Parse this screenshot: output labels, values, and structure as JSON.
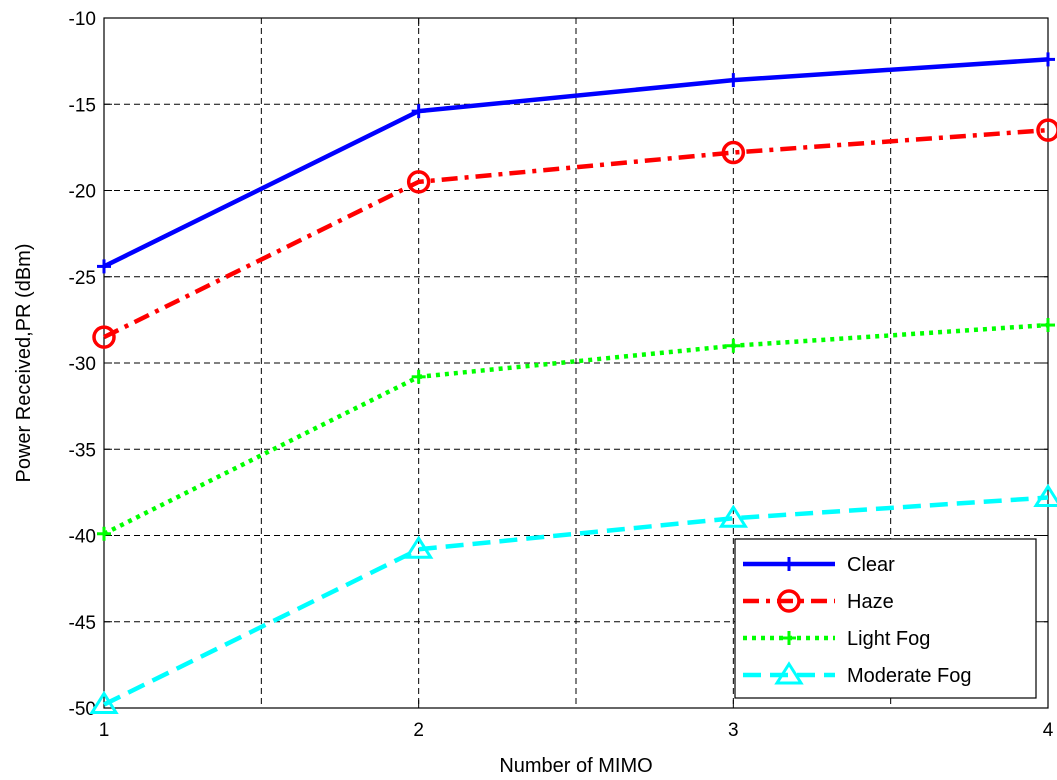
{
  "chart_data": {
    "type": "line",
    "title": "",
    "xlabel": "Number of MIMO",
    "ylabel": "Power Received,PR (dBm)",
    "xlim": [
      1,
      4
    ],
    "ylim": [
      -50,
      -10
    ],
    "x_ticks": [
      1,
      2,
      3,
      4
    ],
    "y_ticks": [
      -50,
      -45,
      -40,
      -35,
      -30,
      -25,
      -20,
      -15,
      -10
    ],
    "x_grid": [
      1,
      1.5,
      2,
      2.5,
      3,
      3.5,
      4
    ],
    "grid": true,
    "legend_position": "bottom-right",
    "x": [
      1,
      2,
      3,
      4
    ],
    "series": [
      {
        "name": "Clear",
        "values": [
          -24.4,
          -15.4,
          -13.6,
          -12.4
        ],
        "color": "#0000ff",
        "marker": "plus",
        "dash": "solid"
      },
      {
        "name": "Haze",
        "values": [
          -28.5,
          -19.5,
          -17.8,
          -16.5
        ],
        "color": "#ff0000",
        "marker": "circle",
        "dash": "dashdot"
      },
      {
        "name": "Light Fog",
        "values": [
          -39.9,
          -30.8,
          -29.0,
          -27.8
        ],
        "color": "#00ff00",
        "marker": "plus",
        "dash": "dotted"
      },
      {
        "name": "Moderate Fog",
        "values": [
          -49.8,
          -40.8,
          -39.0,
          -37.8
        ],
        "color": "#00ffff",
        "marker": "triangle",
        "dash": "dashed"
      }
    ]
  }
}
